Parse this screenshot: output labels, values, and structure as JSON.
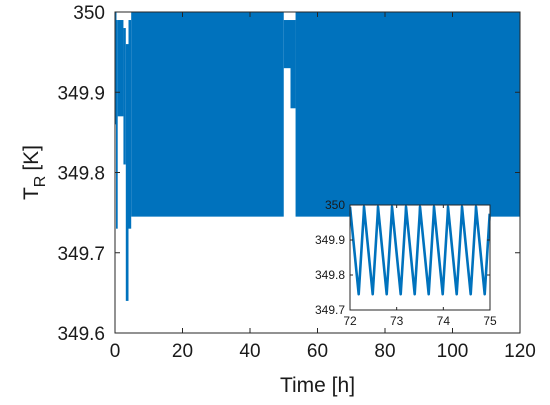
{
  "chart_data": [
    {
      "type": "line",
      "title": "",
      "xlabel": "Time [h]",
      "ylabel": "T",
      "ylabel_subscript": "R",
      "ylabel_unit": "[K]",
      "xlim": [
        0,
        120
      ],
      "ylim": [
        349.6,
        350
      ],
      "xticks": [
        0,
        20,
        40,
        60,
        80,
        100,
        120
      ],
      "yticks": [
        349.6,
        349.7,
        349.8,
        349.9,
        350
      ],
      "ytick_labels": [
        "349.6",
        "349.7",
        "349.8",
        "349.9",
        "350"
      ],
      "grid": false,
      "line_color": "#0072BD",
      "series": [
        {
          "name": "",
          "segments": [
            {
              "x_start": 0,
              "x_end": 0.3,
              "y_min": 349.86,
              "y_max": 350.0
            },
            {
              "x_start": 0.3,
              "x_end": 0.8,
              "y_min": 349.73,
              "y_max": 349.99
            },
            {
              "x_start": 0.8,
              "x_end": 2.5,
              "y_min": 349.87,
              "y_max": 349.99
            },
            {
              "x_start": 2.5,
              "x_end": 3.2,
              "y_min": 349.81,
              "y_max": 349.98
            },
            {
              "x_start": 3.2,
              "x_end": 4.0,
              "y_min": 349.64,
              "y_max": 349.96
            },
            {
              "x_start": 4.0,
              "x_end": 4.8,
              "y_min": 349.73,
              "y_max": 349.99
            },
            {
              "x_start": 4.8,
              "x_end": 50.0,
              "y_min": 349.745,
              "y_max": 350.0
            },
            {
              "x_start": 50.0,
              "x_end": 52.0,
              "y_min": 349.93,
              "y_max": 349.99
            },
            {
              "x_start": 52.0,
              "x_end": 53.5,
              "y_min": 349.88,
              "y_max": 349.99
            },
            {
              "x_start": 53.5,
              "x_end": 120.0,
              "y_min": 349.745,
              "y_max": 350.0
            }
          ]
        }
      ]
    },
    {
      "type": "line",
      "title": "",
      "xlabel": "",
      "ylabel": "",
      "xlim": [
        72,
        75
      ],
      "ylim": [
        349.7,
        350
      ],
      "xticks": [
        72,
        73,
        74,
        75
      ],
      "yticks": [
        349.7,
        349.8,
        349.9,
        350
      ],
      "ytick_labels": [
        "349.7",
        "349.8",
        "349.9",
        "350"
      ],
      "grid": false,
      "line_color": "#0072BD",
      "series": [
        {
          "name": "",
          "period_h": 0.3,
          "cycles": 10,
          "x_start": 72.0,
          "y_min": 349.745,
          "y_max": 349.995
        }
      ]
    }
  ]
}
